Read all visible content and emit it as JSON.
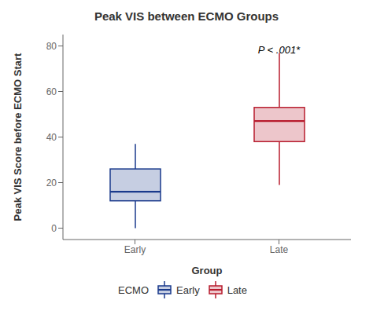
{
  "chart_data": {
    "type": "box",
    "title": "Peak VIS between ECMO Groups",
    "xlabel": "Group",
    "ylabel": "Peak VIS Score before ECMO Start",
    "categories": [
      "Early",
      "Late"
    ],
    "boxes": [
      {
        "name": "Early",
        "whisker_low": 0,
        "q1": 12,
        "median": 16,
        "q3": 26,
        "whisker_high": 37,
        "color": "#1a3a8c"
      },
      {
        "name": "Late",
        "whisker_low": 19,
        "q1": 38,
        "median": 47,
        "q3": 53,
        "whisker_high": 77,
        "color": "#b81c2e"
      }
    ],
    "ylim": [
      -5,
      85
    ],
    "yticks": [
      0,
      20,
      40,
      60,
      80
    ],
    "annotations": [
      {
        "text": "P < .001*",
        "x": "Late",
        "y": 81
      }
    ],
    "legend": "bottom",
    "legend_title": "ECMO",
    "grid": false
  }
}
